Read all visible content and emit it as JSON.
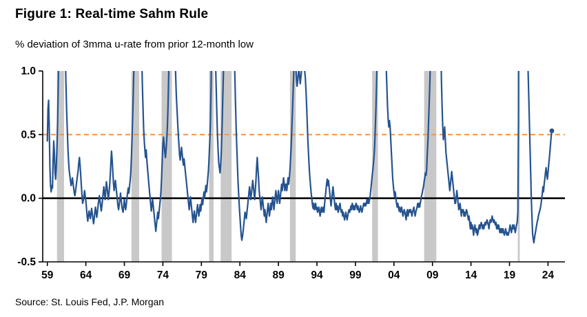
{
  "chart_data": {
    "type": "line",
    "title": "Figure 1: Real-time Sahm Rule",
    "subtitle": "% deviation of 3mma u-rate from prior 12-month low",
    "source": "Source: St. Louis Fed, J.P. Morgan",
    "frequency": "monthly",
    "x_start_year": 1959,
    "xlim": [
      1958.4,
      2026.2
    ],
    "ylim": [
      -0.5,
      1.0
    ],
    "yticks": [
      1.0,
      0.5,
      0.0,
      -0.5
    ],
    "ytick_labels": [
      "1.0",
      "0.5",
      "0.0",
      "-0.5"
    ],
    "xtick_years": [
      1959,
      1964,
      1969,
      1974,
      1979,
      1984,
      1989,
      1994,
      1999,
      2004,
      2009,
      2014,
      2019,
      2024
    ],
    "xtick_labels": [
      "59",
      "64",
      "69",
      "74",
      "79",
      "84",
      "89",
      "94",
      "99",
      "04",
      "09",
      "14",
      "19",
      "24"
    ],
    "threshold_value": 0.5,
    "zero_line": 0.0,
    "grid": false,
    "legend": "none",
    "colors": {
      "line": "#25538f",
      "threshold": "#f79646",
      "recession_band": "#c8c8c8",
      "zero_line": "#000000",
      "axis": "#000000",
      "text": "#000000"
    },
    "recessions": [
      [
        1960.25,
        1961.17
      ],
      [
        1969.92,
        1970.92
      ],
      [
        1973.83,
        1975.17
      ],
      [
        1980.0,
        1980.58
      ],
      [
        1981.5,
        1982.92
      ],
      [
        1990.5,
        1991.25
      ],
      [
        2001.17,
        2001.92
      ],
      [
        2007.92,
        2009.5
      ],
      [
        2020.08,
        2020.33
      ]
    ],
    "end_marker": true,
    "values": [
      0.45,
      0.7,
      0.77,
      0.55,
      0.25,
      0.1,
      0.05,
      0.1,
      0.08,
      0.3,
      0.45,
      0.35,
      0.2,
      0.15,
      0.25,
      0.4,
      0.6,
      0.9,
      1.2,
      1.45,
      1.6,
      1.7,
      1.75,
      1.8,
      1.85,
      1.8,
      1.7,
      1.45,
      1.15,
      0.9,
      0.7,
      0.55,
      0.4,
      0.3,
      0.22,
      0.18,
      0.14,
      0.1,
      0.12,
      0.16,
      0.12,
      0.08,
      0.04,
      0.02,
      0.06,
      0.1,
      0.14,
      0.18,
      0.22,
      0.28,
      0.32,
      0.26,
      0.18,
      0.1,
      0.02,
      -0.04,
      -0.02,
      0.02,
      0.06,
      0.02,
      -0.02,
      -0.08,
      -0.14,
      -0.18,
      -0.14,
      -0.1,
      -0.13,
      -0.16,
      -0.12,
      -0.08,
      -0.12,
      -0.16,
      -0.2,
      -0.16,
      -0.11,
      -0.07,
      -0.11,
      -0.15,
      -0.11,
      -0.06,
      -0.02,
      0.02,
      -0.02,
      -0.06,
      -0.1,
      -0.06,
      -0.01,
      0.04,
      0.09,
      0.04,
      -0.01,
      0.06,
      0.13,
      0.09,
      0.04,
      -0.01,
      0.04,
      0.09,
      0.18,
      0.28,
      0.37,
      0.3,
      0.21,
      0.12,
      0.06,
      0.1,
      0.14,
      0.09,
      0.04,
      -0.01,
      -0.06,
      -0.09,
      -0.05,
      -0.01,
      0.04,
      -0.01,
      -0.06,
      -0.09,
      -0.11,
      -0.06,
      -0.01,
      -0.06,
      -0.09,
      -0.05,
      0.0,
      0.04,
      0.08,
      0.04,
      0.09,
      0.14,
      0.2,
      0.32,
      0.48,
      0.65,
      0.85,
      1.05,
      1.25,
      1.45,
      1.55,
      1.65,
      1.75,
      1.82,
      1.88,
      1.92,
      1.85,
      1.7,
      1.45,
      1.15,
      0.9,
      0.72,
      0.55,
      0.45,
      0.38,
      0.32,
      0.38,
      0.3,
      0.24,
      0.18,
      0.12,
      0.06,
      0.01,
      -0.05,
      -0.1,
      -0.05,
      -0.01,
      -0.06,
      -0.11,
      -0.16,
      -0.21,
      -0.26,
      -0.21,
      -0.16,
      -0.11,
      -0.16,
      -0.11,
      -0.06,
      -0.01,
      0.05,
      0.16,
      0.3,
      0.42,
      0.48,
      0.42,
      0.36,
      0.32,
      0.38,
      0.46,
      0.56,
      0.72,
      0.95,
      1.25,
      1.65,
      2.05,
      2.35,
      2.45,
      2.3,
      2.05,
      1.75,
      1.45,
      1.15,
      0.95,
      0.8,
      0.7,
      0.6,
      0.5,
      0.42,
      0.34,
      0.3,
      0.35,
      0.4,
      0.35,
      0.3,
      0.26,
      0.31,
      0.26,
      0.21,
      0.16,
      0.11,
      0.06,
      0.01,
      -0.04,
      -0.09,
      -0.04,
      0.01,
      -0.04,
      -0.09,
      -0.14,
      -0.19,
      -0.14,
      -0.1,
      -0.15,
      -0.19,
      -0.14,
      -0.1,
      -0.05,
      -0.1,
      -0.14,
      -0.1,
      -0.05,
      -0.1,
      -0.05,
      0.0,
      -0.05,
      0.0,
      0.05,
      0.0,
      0.05,
      0.1,
      0.05,
      0.1,
      0.16,
      0.22,
      0.32,
      0.44,
      0.58,
      0.85,
      1.25,
      1.6,
      1.8,
      1.7,
      1.5,
      1.28,
      1.08,
      0.88,
      0.68,
      0.5,
      0.38,
      0.28,
      0.24,
      0.2,
      0.26,
      0.36,
      0.52,
      0.72,
      0.92,
      1.12,
      1.32,
      1.5,
      1.62,
      1.72,
      1.82,
      1.92,
      2.02,
      2.12,
      2.22,
      2.32,
      2.38,
      2.42,
      2.25,
      1.95,
      1.6,
      1.28,
      1.0,
      0.78,
      0.58,
      0.42,
      0.28,
      0.14,
      0.04,
      -0.06,
      -0.14,
      -0.22,
      -0.29,
      -0.33,
      -0.3,
      -0.26,
      -0.21,
      -0.16,
      -0.11,
      -0.13,
      -0.16,
      -0.11,
      -0.06,
      -0.01,
      0.04,
      0.09,
      0.04,
      -0.01,
      0.04,
      0.09,
      0.14,
      0.09,
      0.04,
      -0.01,
      0.06,
      0.14,
      0.24,
      0.32,
      0.24,
      0.16,
      0.06,
      0.01,
      -0.04,
      -0.09,
      -0.04,
      0.01,
      -0.04,
      -0.09,
      -0.14,
      -0.09,
      -0.14,
      -0.19,
      -0.14,
      -0.09,
      -0.04,
      -0.09,
      -0.14,
      -0.09,
      -0.04,
      -0.09,
      -0.04,
      0.01,
      -0.04,
      -0.09,
      -0.04,
      0.01,
      0.06,
      0.01,
      -0.04,
      0.01,
      0.06,
      0.01,
      -0.04,
      0.01,
      0.06,
      0.11,
      0.06,
      0.11,
      0.16,
      0.11,
      0.06,
      0.11,
      0.11,
      0.06,
      0.11,
      0.16,
      0.11,
      0.16,
      0.22,
      0.32,
      0.42,
      0.56,
      0.7,
      0.85,
      1.0,
      1.08,
      1.12,
      1.05,
      0.95,
      0.88,
      0.92,
      0.98,
      1.02,
      0.96,
      0.9,
      0.95,
      1.0,
      1.05,
      1.08,
      1.1,
      1.06,
      1.0,
      0.94,
      0.84,
      0.72,
      0.58,
      0.44,
      0.34,
      0.24,
      0.16,
      0.1,
      0.04,
      0.0,
      -0.05,
      -0.08,
      -0.04,
      -0.09,
      -0.07,
      -0.04,
      -0.09,
      -0.07,
      -0.11,
      -0.09,
      -0.07,
      -0.11,
      -0.14,
      -0.09,
      -0.07,
      -0.11,
      -0.09,
      -0.07,
      -0.11,
      -0.04,
      0.01,
      0.06,
      0.11,
      0.15,
      0.1,
      0.14,
      0.09,
      0.04,
      -0.01,
      -0.06,
      -0.01,
      0.04,
      0.09,
      0.04,
      -0.01,
      -0.06,
      -0.09,
      -0.04,
      -0.09,
      -0.06,
      -0.11,
      -0.09,
      -0.06,
      -0.04,
      -0.09,
      -0.11,
      -0.09,
      -0.14,
      -0.11,
      -0.14,
      -0.17,
      -0.14,
      -0.11,
      -0.14,
      -0.17,
      -0.14,
      -0.11,
      -0.09,
      -0.11,
      -0.09,
      -0.06,
      -0.09,
      -0.04,
      -0.06,
      -0.09,
      -0.06,
      -0.09,
      -0.06,
      -0.04,
      -0.06,
      -0.09,
      -0.06,
      -0.09,
      -0.11,
      -0.09,
      -0.06,
      -0.09,
      -0.11,
      -0.09,
      -0.06,
      -0.04,
      -0.06,
      -0.04,
      -0.06,
      -0.04,
      -0.01,
      -0.04,
      -0.01,
      -0.04,
      -0.01,
      0.02,
      0.07,
      0.12,
      0.17,
      0.22,
      0.27,
      0.33,
      0.42,
      0.56,
      0.72,
      0.92,
      1.12,
      1.32,
      1.42,
      1.47,
      1.42,
      1.37,
      1.32,
      1.27,
      1.22,
      1.17,
      1.12,
      1.07,
      1.12,
      1.17,
      1.02,
      0.87,
      0.72,
      0.62,
      0.56,
      0.61,
      0.56,
      0.46,
      0.36,
      0.26,
      0.16,
      0.1,
      0.05,
      0.01,
      0.05,
      0.0,
      -0.04,
      -0.07,
      -0.04,
      -0.07,
      -0.1,
      -0.07,
      -0.11,
      -0.09,
      -0.07,
      -0.11,
      -0.14,
      -0.11,
      -0.09,
      -0.11,
      -0.14,
      -0.17,
      -0.11,
      -0.09,
      -0.14,
      -0.11,
      -0.09,
      -0.11,
      -0.09,
      -0.11,
      -0.14,
      -0.11,
      -0.09,
      -0.07,
      -0.11,
      -0.14,
      -0.11,
      -0.09,
      -0.07,
      -0.04,
      -0.07,
      -0.04,
      -0.07,
      -0.04,
      -0.01,
      0.02,
      0.04,
      0.07,
      0.09,
      0.13,
      0.16,
      0.2,
      0.18,
      0.23,
      0.36,
      0.46,
      0.61,
      0.76,
      0.92,
      1.12,
      1.42,
      1.72,
      2.22,
      2.62,
      3.02,
      3.32,
      3.52,
      3.62,
      3.52,
      3.42,
      3.32,
      3.42,
      3.32,
      3.22,
      1.62,
      1.22,
      0.92,
      0.72,
      0.56,
      0.46,
      0.51,
      0.56,
      0.46,
      0.36,
      0.31,
      0.26,
      0.21,
      0.16,
      0.11,
      0.06,
      0.11,
      0.16,
      0.21,
      0.16,
      0.11,
      0.06,
      0.01,
      -0.04,
      -0.04,
      0.01,
      0.06,
      0.01,
      -0.04,
      -0.09,
      -0.07,
      -0.04,
      -0.09,
      -0.14,
      -0.09,
      -0.11,
      -0.09,
      -0.14,
      -0.11,
      -0.14,
      -0.11,
      -0.09,
      -0.11,
      -0.14,
      -0.17,
      -0.14,
      -0.19,
      -0.24,
      -0.19,
      -0.24,
      -0.21,
      -0.24,
      -0.29,
      -0.24,
      -0.21,
      -0.24,
      -0.27,
      -0.24,
      -0.29,
      -0.27,
      -0.24,
      -0.21,
      -0.24,
      -0.21,
      -0.19,
      -0.21,
      -0.24,
      -0.21,
      -0.24,
      -0.21,
      -0.19,
      -0.21,
      -0.19,
      -0.17,
      -0.19,
      -0.21,
      -0.24,
      -0.19,
      -0.17,
      -0.19,
      -0.17,
      -0.14,
      -0.17,
      -0.19,
      -0.17,
      -0.19,
      -0.21,
      -0.19,
      -0.24,
      -0.21,
      -0.24,
      -0.21,
      -0.24,
      -0.27,
      -0.24,
      -0.27,
      -0.24,
      -0.27,
      -0.24,
      -0.27,
      -0.29,
      -0.27,
      -0.24,
      -0.27,
      -0.29,
      -0.27,
      -0.29,
      -0.27,
      -0.24,
      -0.21,
      -0.24,
      -0.27,
      -0.24,
      -0.21,
      -0.24,
      -0.21,
      -0.24,
      -0.27,
      -0.24,
      -0.21,
      -0.19,
      -0.11,
      0.62,
      5.0,
      8.5,
      9.2,
      8.2,
      7.2,
      6.2,
      5.2,
      4.6,
      4.1,
      3.1,
      2.6,
      2.1,
      1.6,
      1.3,
      1.0,
      0.8,
      0.6,
      0.4,
      0.2,
      0.0,
      -0.15,
      -0.28,
      -0.32,
      -0.35,
      -0.31,
      -0.28,
      -0.25,
      -0.22,
      -0.19,
      -0.17,
      -0.14,
      -0.12,
      -0.1,
      -0.08,
      -0.05,
      -0.01,
      0.03,
      0.09,
      0.05,
      0.11,
      0.15,
      0.2,
      0.24,
      0.19,
      0.15,
      0.2,
      0.26,
      0.31,
      0.37,
      0.43,
      0.49,
      0.53
    ]
  }
}
